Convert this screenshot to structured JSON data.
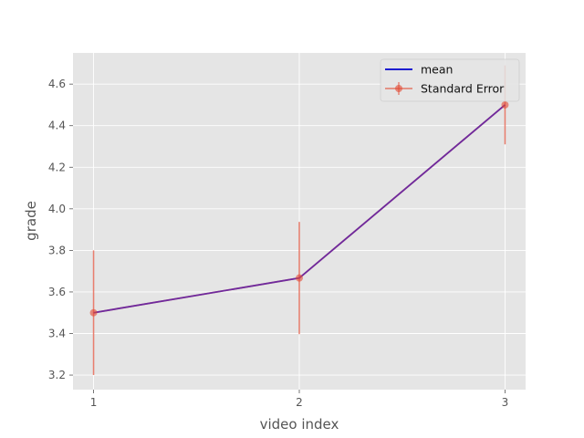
{
  "chart_data": {
    "type": "line",
    "title": "",
    "xlabel": "video index",
    "ylabel": "grade",
    "x": [
      1,
      2,
      3
    ],
    "xticks": [
      "1",
      "2",
      "3"
    ],
    "xlim": [
      0.9,
      3.1
    ],
    "yticks": [
      "3.2",
      "3.4",
      "3.6",
      "3.8",
      "4.0",
      "4.2",
      "4.4",
      "4.6"
    ],
    "ylim": [
      3.13,
      4.75
    ],
    "grid": true,
    "legend_position": "top-right",
    "series": [
      {
        "name": "mean",
        "type": "line",
        "values": [
          3.5,
          3.667,
          4.5
        ],
        "color": "#0000cc"
      },
      {
        "name": "Standard Error",
        "type": "errorbar",
        "values": [
          3.5,
          3.667,
          4.5
        ],
        "errors": [
          0.3,
          0.27,
          0.19
        ],
        "color": "#e24a33"
      }
    ],
    "overlay_line_color": "#6e2a9e"
  }
}
